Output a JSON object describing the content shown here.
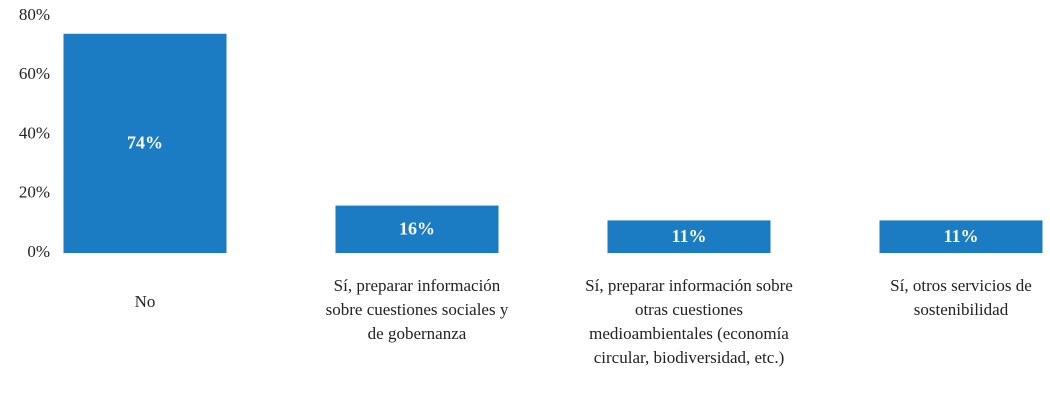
{
  "chart_data": {
    "type": "bar",
    "categories": [
      "No",
      "Sí, preparar información sobre cuestiones sociales y de gobernanza",
      "Sí, preparar información sobre otras cuestiones medioambientales (economía circular, biodiversidad, etc.)",
      "Sí, otros servicios de sostenibilidad"
    ],
    "values": [
      74,
      16,
      11,
      11
    ],
    "value_labels": [
      "74%",
      "16%",
      "11%",
      "11%"
    ],
    "color": "#1b7cc3",
    "ylim": [
      0,
      80
    ],
    "yticks": [
      {
        "value": 0,
        "label": "0%"
      },
      {
        "value": 20,
        "label": "20%"
      },
      {
        "value": 40,
        "label": "40%"
      },
      {
        "value": 60,
        "label": "60%"
      },
      {
        "value": 80,
        "label": "80%"
      }
    ],
    "grid": false
  }
}
